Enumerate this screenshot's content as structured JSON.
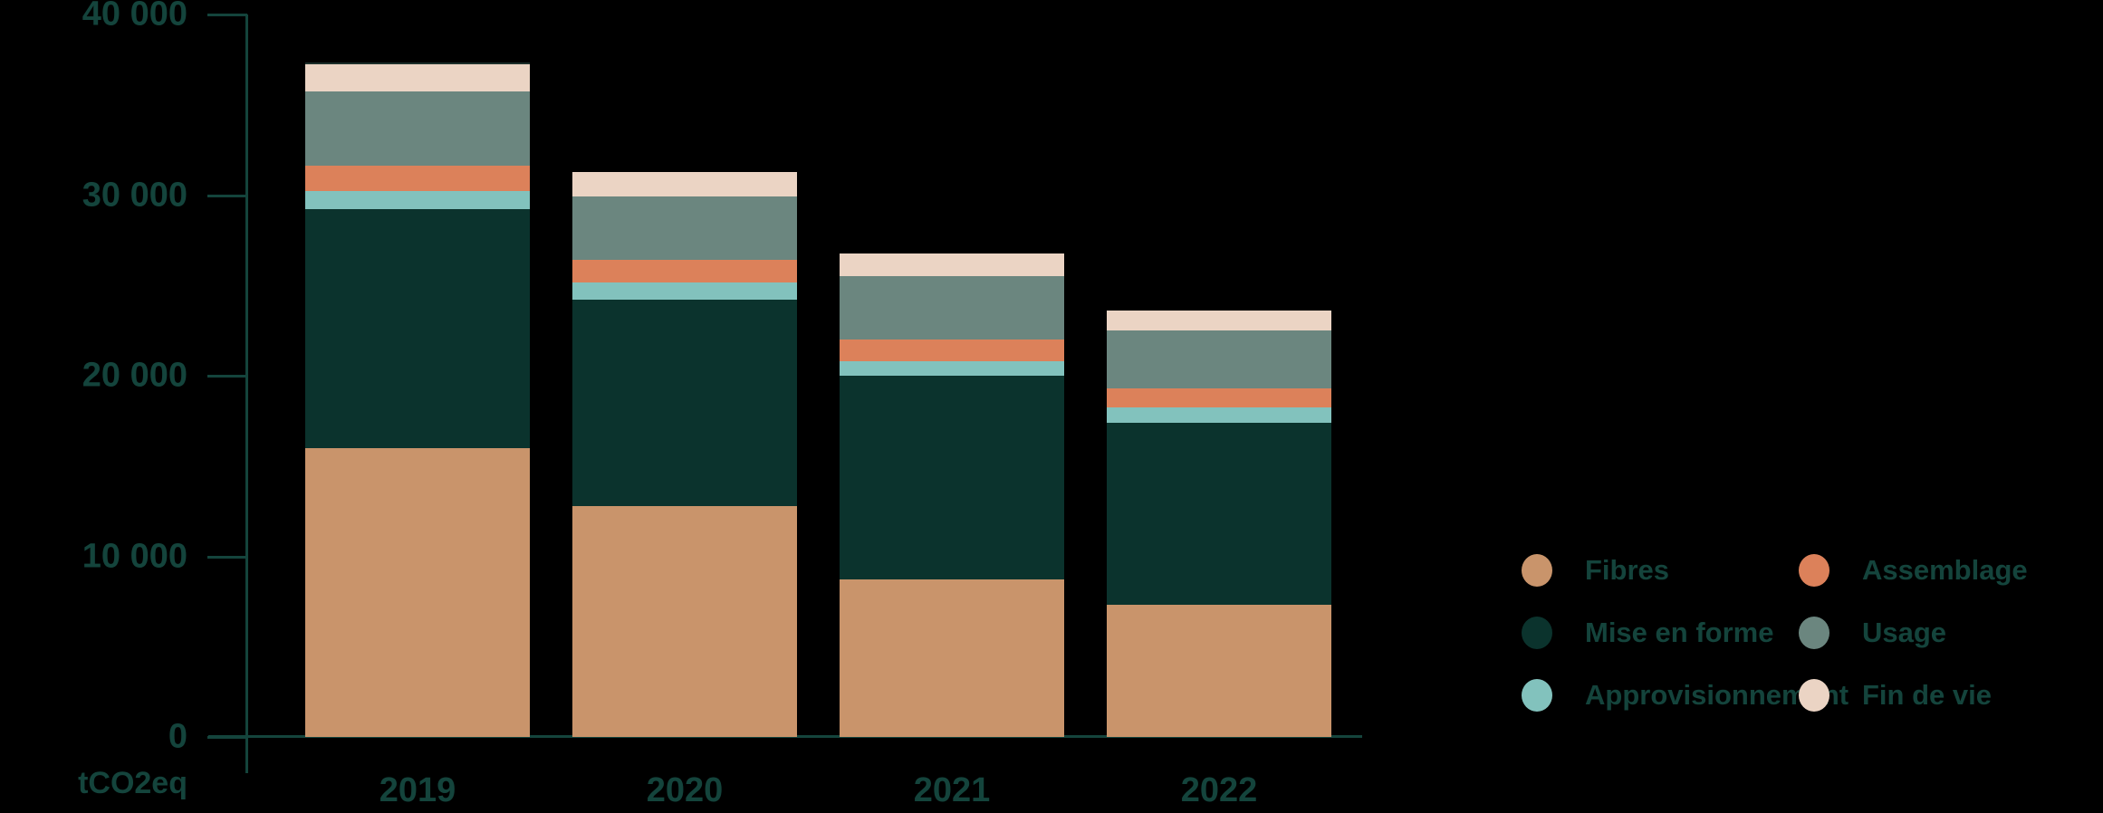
{
  "colors": {
    "axis_text": "#14443c",
    "fibres": "#c9946b",
    "mise_en_forme": "#0b332d",
    "approvisionnement": "#82c2bd",
    "assemblage": "#dc815a",
    "usage": "#6b867f",
    "fin_de_vie": "#ebd4c4",
    "background": "#000000"
  },
  "chart_data": {
    "type": "bar",
    "stacked": true,
    "title": "",
    "xlabel": "",
    "ylabel": "tCO2eq",
    "ylim": [
      0,
      40000
    ],
    "yticks": [
      0,
      10000,
      20000,
      30000,
      40000
    ],
    "ytick_labels": [
      "0",
      "10 000",
      "20 000",
      "30 000",
      "40 000"
    ],
    "grid": false,
    "legend_position": "right",
    "categories": [
      "2019",
      "2020",
      "2021",
      "2022"
    ],
    "series": [
      {
        "name": "Fibres",
        "color_key": "fibres",
        "values": [
          16000,
          12800,
          8700,
          7300
        ]
      },
      {
        "name": "Mise en forme",
        "color_key": "mise_en_forme",
        "values": [
          13200,
          11400,
          11300,
          10100
        ]
      },
      {
        "name": "Approvisionnement",
        "color_key": "approvisionnement",
        "values": [
          1050,
          950,
          800,
          850
        ]
      },
      {
        "name": "Assemblage",
        "color_key": "assemblage",
        "values": [
          1400,
          1250,
          1200,
          1050
        ]
      },
      {
        "name": "Usage",
        "color_key": "usage",
        "values": [
          4100,
          3550,
          3500,
          3200
        ]
      },
      {
        "name": "Fin de vie",
        "color_key": "fin_de_vie",
        "values": [
          1600,
          1350,
          1250,
          1100
        ]
      }
    ],
    "totals": [
      37350,
      31300,
      26750,
      23600
    ],
    "top_separator_categories": [
      "2019"
    ]
  },
  "legend": {
    "columns": [
      {
        "items": [
          {
            "label": "Fibres",
            "color_key": "fibres"
          },
          {
            "label": "Mise en forme",
            "color_key": "mise_en_forme"
          },
          {
            "label": "Approvisionnement",
            "color_key": "approvisionnement"
          }
        ]
      },
      {
        "items": [
          {
            "label": "Assemblage",
            "color_key": "assemblage"
          },
          {
            "label": "Usage",
            "color_key": "usage"
          },
          {
            "label": "Fin de vie",
            "color_key": "fin_de_vie"
          }
        ]
      }
    ]
  },
  "axis": {
    "unit_label": "tCO2eq"
  }
}
